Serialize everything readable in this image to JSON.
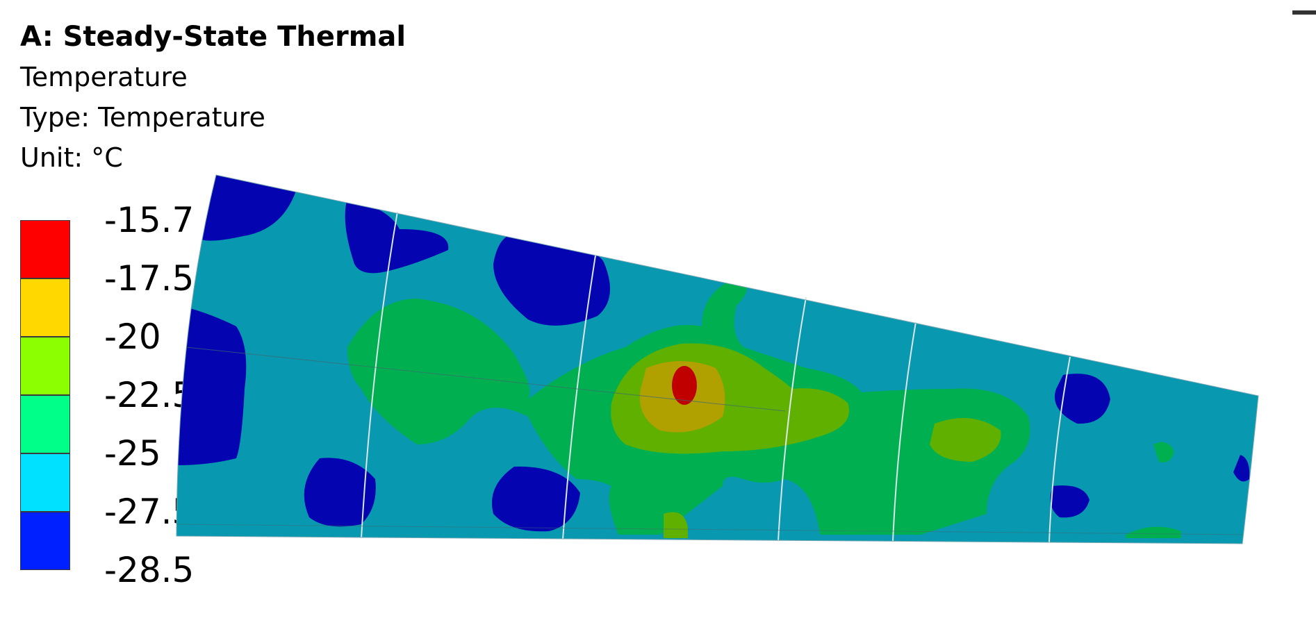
{
  "result_header": {
    "title": "A: Steady-State Thermal",
    "result_name": "Temperature",
    "type_line": "Type: Temperature",
    "unit_line": "Unit: °C"
  },
  "legend": {
    "tick_labels": [
      "-15.7",
      "-17.5",
      "-20",
      "-22.5",
      "-25",
      "-27.5",
      "-28.5"
    ],
    "band_colors": [
      "#ff0000",
      "#ffd800",
      "#8cff00",
      "#00ff88",
      "#00e0ff",
      "#0020ff"
    ]
  },
  "model_colors": {
    "base": "#0898b0",
    "deep_blue": "#0404b0",
    "green": "#00b050",
    "lime": "#60b000",
    "olive": "#b0a000",
    "red": "#c00000"
  }
}
